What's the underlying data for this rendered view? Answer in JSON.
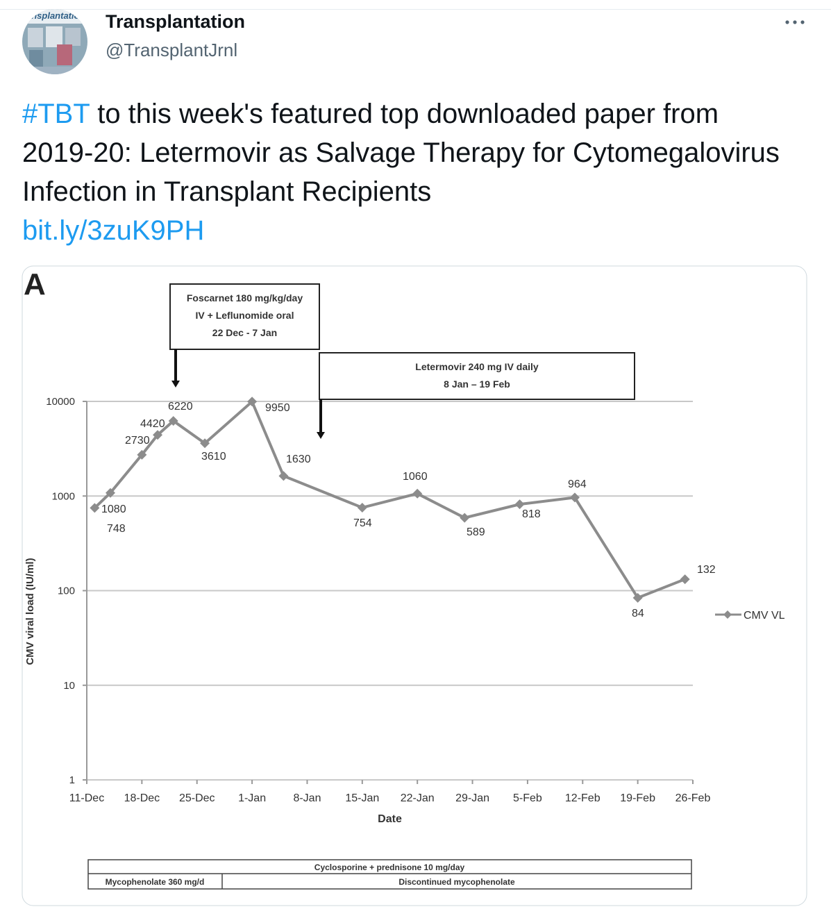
{
  "tweet": {
    "name": "Transplantation",
    "handle": "@TransplantJrnl",
    "avatar_text": "ansplantatio",
    "hashtag": "#TBT",
    "text": "to this week's featured top downloaded paper from 2019-20: Letermovir as Salvage Therapy for Cytomegalovirus Infection in Transplant Recipients",
    "link": "bit.ly/3zuK9PH"
  },
  "chart_data": {
    "type": "line",
    "panel_label": "A",
    "y_label": "CMV viral load (IU/ml)",
    "x_label": "Date",
    "x": [
      1,
      3,
      7,
      9,
      11,
      15,
      21,
      25,
      35,
      42,
      48,
      55,
      62,
      70,
      76
    ],
    "series": [
      {
        "name": "CMV VL",
        "color": "#8c8c8c",
        "values": [
          748,
          1080,
          2730,
          4420,
          6220,
          3610,
          9950,
          1630,
          754,
          1060,
          589,
          818,
          964,
          84,
          132
        ]
      }
    ],
    "xlim": [
      0,
      77
    ],
    "xticks": [
      {
        "value": 0,
        "label": "11-Dec"
      },
      {
        "value": 7,
        "label": "18-Dec"
      },
      {
        "value": 14,
        "label": "25-Dec"
      },
      {
        "value": 21,
        "label": "1-Jan"
      },
      {
        "value": 28,
        "label": "8-Jan"
      },
      {
        "value": 35,
        "label": "15-Jan"
      },
      {
        "value": 42,
        "label": "22-Jan"
      },
      {
        "value": 49,
        "label": "29-Jan"
      },
      {
        "value": 56,
        "label": "5-Feb"
      },
      {
        "value": 63,
        "label": "12-Feb"
      },
      {
        "value": 70,
        "label": "19-Feb"
      },
      {
        "value": 77,
        "label": "26-Feb"
      }
    ],
    "ylim": [
      1,
      10000
    ],
    "yticks": [
      1,
      10,
      100,
      1000,
      10000
    ],
    "log_y": true,
    "grid": true,
    "legend": "right",
    "annotations": [
      [
        "Foscarnet 180 mg/kg/day",
        "IV + Leflunomide oral",
        "22 Dec  - 7 Jan"
      ],
      [
        "Letermovir 240 mg IV daily",
        "8 Jan – 19 Feb"
      ]
    ],
    "regimen_table": {
      "row1": "Cyclosporine + prednisone 10 mg/day",
      "row2": [
        "Mycophenolate 360 mg/d",
        "Discontinued mycophenolate"
      ]
    }
  }
}
